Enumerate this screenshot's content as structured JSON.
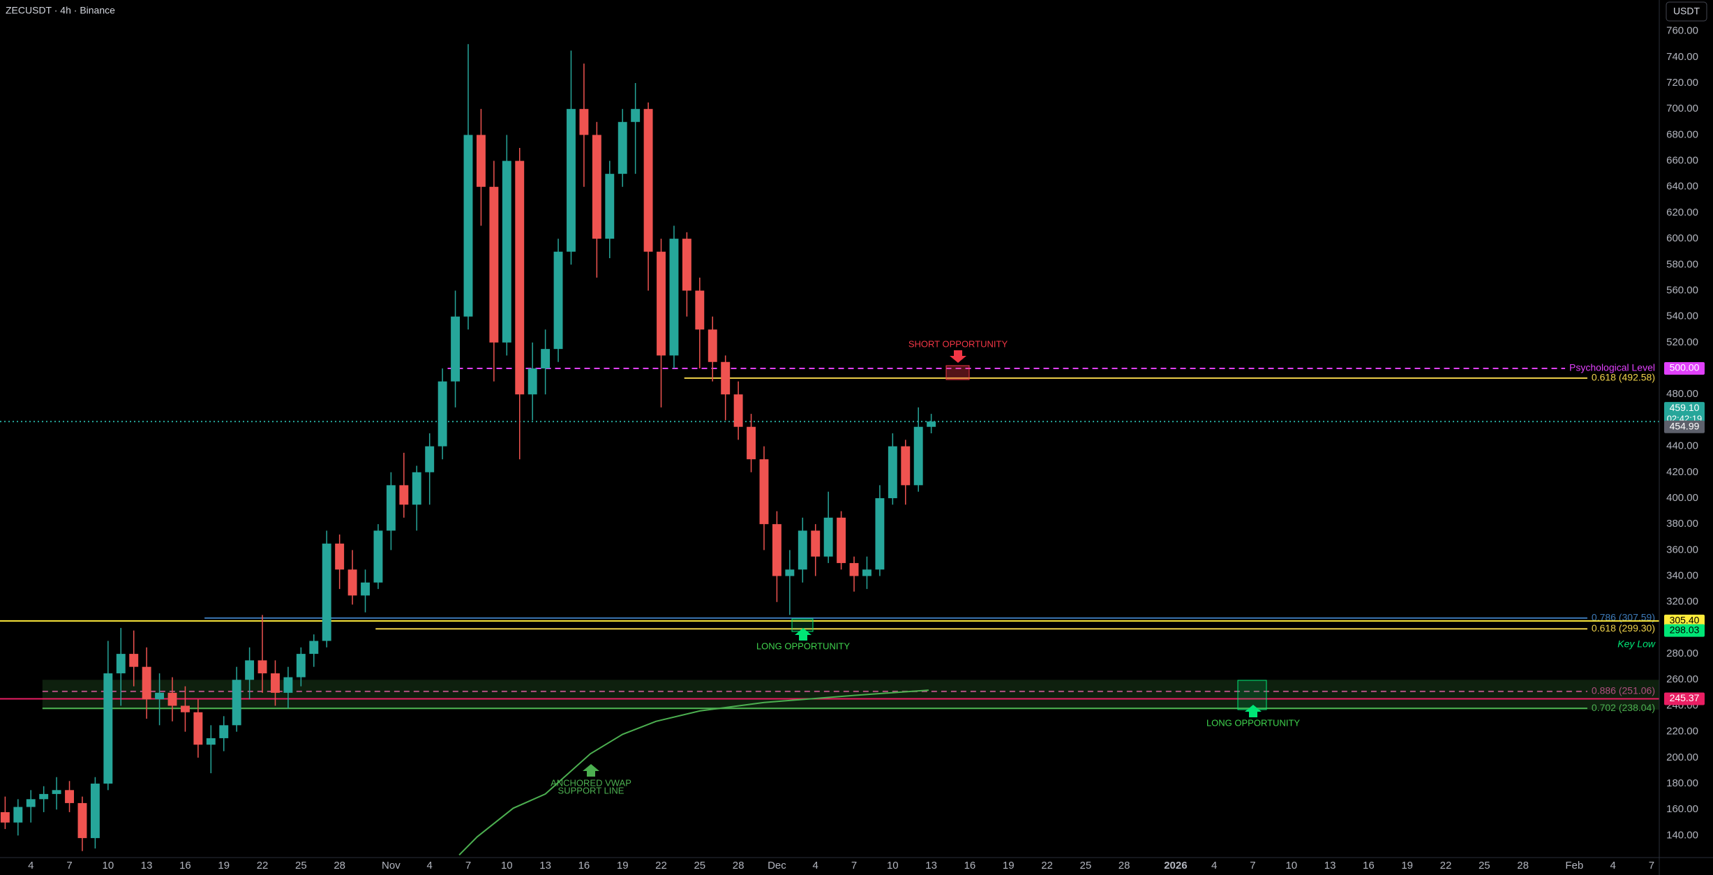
{
  "header": {
    "title": "ZECUSDT · 4h · Binance",
    "currency": "USDT"
  },
  "chart_data": {
    "type": "candlestick",
    "x": [
      1,
      2,
      3,
      4,
      5,
      6,
      7,
      8,
      9,
      10,
      11,
      12,
      13,
      14,
      15,
      16,
      17,
      18,
      19,
      20,
      21,
      22,
      23,
      24,
      25,
      26,
      27,
      28,
      29,
      30,
      31,
      32,
      33,
      34,
      35,
      36,
      37,
      38,
      39,
      40,
      41,
      42,
      43,
      44,
      45,
      46,
      47,
      48,
      49,
      50,
      51,
      52,
      53,
      54,
      55,
      56,
      57,
      58,
      59,
      60,
      61,
      62,
      63,
      64,
      65,
      66,
      67,
      68,
      69,
      70,
      71,
      72,
      73,
      74
    ],
    "open": [
      150,
      158,
      150,
      162,
      168,
      172,
      175,
      165,
      138,
      180,
      265,
      280,
      270,
      245,
      250,
      240,
      235,
      210,
      215,
      225,
      260,
      275,
      265,
      250,
      262,
      280,
      290,
      365,
      345,
      325,
      335,
      375,
      410,
      395,
      420,
      440,
      490,
      540,
      680,
      640,
      520,
      660,
      480,
      500,
      515,
      590,
      700,
      680,
      600,
      650,
      690,
      700,
      590,
      510,
      600,
      560,
      530,
      505,
      480,
      455,
      430,
      380,
      340,
      345,
      375,
      355,
      385,
      350,
      340,
      345,
      400,
      440,
      410,
      455
    ],
    "high": [
      165,
      170,
      168,
      175,
      178,
      185,
      182,
      170,
      185,
      290,
      300,
      298,
      285,
      265,
      262,
      255,
      245,
      225,
      232,
      270,
      285,
      310,
      275,
      270,
      285,
      295,
      375,
      372,
      360,
      345,
      380,
      420,
      435,
      425,
      450,
      500,
      560,
      750,
      700,
      660,
      680,
      670,
      520,
      530,
      600,
      745,
      735,
      690,
      660,
      700,
      720,
      705,
      600,
      610,
      605,
      570,
      540,
      510,
      490,
      465,
      440,
      390,
      360,
      385,
      380,
      405,
      390,
      355,
      355,
      410,
      450,
      445,
      470,
      465
    ],
    "low": [
      128,
      145,
      140,
      150,
      158,
      160,
      158,
      128,
      130,
      175,
      240,
      255,
      230,
      225,
      228,
      220,
      200,
      188,
      205,
      220,
      245,
      250,
      240,
      238,
      255,
      270,
      285,
      330,
      318,
      312,
      330,
      360,
      385,
      375,
      395,
      430,
      470,
      530,
      610,
      490,
      510,
      430,
      460,
      480,
      505,
      580,
      640,
      570,
      585,
      640,
      650,
      560,
      470,
      500,
      540,
      500,
      490,
      460,
      445,
      420,
      360,
      320,
      310,
      335,
      340,
      350,
      345,
      328,
      330,
      340,
      395,
      395,
      405,
      450
    ],
    "close": [
      158,
      150,
      162,
      168,
      172,
      175,
      165,
      138,
      180,
      265,
      280,
      270,
      245,
      250,
      240,
      235,
      210,
      215,
      225,
      260,
      275,
      265,
      250,
      262,
      280,
      290,
      365,
      345,
      325,
      335,
      375,
      410,
      395,
      420,
      440,
      490,
      540,
      680,
      640,
      520,
      660,
      480,
      500,
      515,
      590,
      700,
      680,
      600,
      650,
      690,
      700,
      590,
      510,
      600,
      560,
      530,
      505,
      480,
      455,
      430,
      380,
      340,
      345,
      375,
      355,
      385,
      350,
      340,
      345,
      400,
      440,
      410,
      455,
      459.1
    ],
    "up_color": "#26a69a",
    "down_color": "#ef5350",
    "xlim": [
      1.6,
      130.6
    ],
    "xticks": [
      4,
      7,
      10,
      13,
      16,
      19,
      22,
      25,
      28,
      {
        "value": 32,
        "label": "Nov"
      },
      {
        "value": 35,
        "label": "4"
      },
      {
        "value": 38,
        "label": "7"
      },
      {
        "value": 41,
        "label": "10"
      },
      {
        "value": 44,
        "label": "13"
      },
      {
        "value": 47,
        "label": "16"
      },
      {
        "value": 50,
        "label": "19"
      },
      {
        "value": 53,
        "label": "22"
      },
      {
        "value": 56,
        "label": "25"
      },
      {
        "value": 59,
        "label": "28"
      },
      {
        "value": 62,
        "label": "Dec"
      },
      {
        "value": 65,
        "label": "4"
      },
      {
        "value": 68,
        "label": "7"
      },
      {
        "value": 71,
        "label": "10"
      },
      {
        "value": 74,
        "label": "13"
      },
      {
        "value": 77,
        "label": "16"
      },
      {
        "value": 80,
        "label": "19"
      },
      {
        "value": 83,
        "label": "22"
      },
      {
        "value": 86,
        "label": "25"
      },
      {
        "value": 89,
        "label": "28"
      },
      {
        "value": 93,
        "label": "2026"
      },
      {
        "value": 96,
        "label": "4"
      },
      {
        "value": 99,
        "label": "7"
      },
      {
        "value": 102,
        "label": "10"
      },
      {
        "value": 105,
        "label": "13"
      },
      {
        "value": 108,
        "label": "16"
      },
      {
        "value": 111,
        "label": "19"
      },
      {
        "value": 114,
        "label": "22"
      },
      {
        "value": 117,
        "label": "25"
      },
      {
        "value": 120,
        "label": "28"
      },
      {
        "value": 124,
        "label": "Feb"
      },
      {
        "value": 127,
        "label": "4"
      },
      {
        "value": 130,
        "label": "7"
      }
    ],
    "ylim": [
      123,
      784
    ],
    "yticks": [
      {
        "value": 140,
        "label": "140.00"
      },
      {
        "value": 160,
        "label": "160.00"
      },
      {
        "value": 180,
        "label": "180.00"
      },
      {
        "value": 200,
        "label": "200.00"
      },
      {
        "value": 220,
        "label": "220.00"
      },
      {
        "value": 240,
        "label": "240.00"
      },
      {
        "value": 260,
        "label": "260.00"
      },
      {
        "value": 280,
        "label": "280.00"
      },
      {
        "value": 300,
        "label": "300.00"
      },
      {
        "value": 320,
        "label": "320.00"
      },
      {
        "value": 340,
        "label": "340.00"
      },
      {
        "value": 360,
        "label": "360.00"
      },
      {
        "value": 380,
        "label": "380.00"
      },
      {
        "value": 400,
        "label": "400.00"
      },
      {
        "value": 420,
        "label": "420.00"
      },
      {
        "value": 440,
        "label": "440.00"
      },
      {
        "value": 460,
        "label": "460.00"
      },
      {
        "value": 480,
        "label": "480.00"
      },
      {
        "value": 500,
        "label": "500.00"
      },
      {
        "value": 520,
        "label": "520.00"
      },
      {
        "value": 540,
        "label": "540.00"
      },
      {
        "value": 560,
        "label": "560.00"
      },
      {
        "value": 580,
        "label": "580.00"
      },
      {
        "value": 600,
        "label": "600.00"
      },
      {
        "value": 620,
        "label": "620.00"
      },
      {
        "value": 640,
        "label": "640.00"
      },
      {
        "value": 660,
        "label": "660.00"
      },
      {
        "value": 680,
        "label": "680.00"
      },
      {
        "value": 700,
        "label": "700.00"
      },
      {
        "value": 720,
        "label": "720.00"
      },
      {
        "value": 740,
        "label": "740.00"
      },
      {
        "value": 760,
        "label": "760.00"
      }
    ],
    "vwap": {
      "x": [
        37.3,
        38.7,
        41.5,
        44,
        47.5,
        50,
        52.6,
        56,
        61,
        68,
        73.8
      ],
      "values": [
        125,
        139,
        161,
        172,
        203,
        218,
        228,
        236,
        242.5,
        248,
        252
      ],
      "color": "#4caf50"
    },
    "zone": {
      "range": [
        237,
        260
      ],
      "from": 4.9,
      "color": "#4caf50"
    },
    "levels": [
      {
        "value": 500,
        "text": "Psychological Level",
        "tag": "500.00",
        "color": "#e040fb",
        "style": "dashed",
        "from": 36.4,
        "tag_text": "#ffffff"
      },
      {
        "value": 492.58,
        "text": "0.618 (492.58)",
        "color": "#f0d34a",
        "style": "solid",
        "from": 54.8
      },
      {
        "value": 459.1,
        "tag": "459.10",
        "note": "02:42:19",
        "color": "#26a69a",
        "style": "dotted",
        "tag_text": "#ffffff"
      },
      {
        "value": 454.99,
        "tag": "454.99",
        "color": "#5d606b",
        "style": "none",
        "tag_text": "#ffffff"
      },
      {
        "value": 307.59,
        "text": "0.786 (307.59)",
        "color": "#3d7ab8",
        "style": "solid",
        "from": 17.5
      },
      {
        "value": 305.4,
        "tag": "305.40",
        "color": "#ffeb3b",
        "style": "solid",
        "tag_text": "#000000"
      },
      {
        "value": 299.3,
        "text": "0.618 (299.30)",
        "color": "#f0d34a",
        "style": "solid",
        "from": 30.8
      },
      {
        "value": 298.03,
        "tag": "298.03",
        "note": "Key Low",
        "color": "#00e676",
        "style": "none",
        "tag_text": "#000000"
      },
      {
        "value": 251.06,
        "text": "0.886 (251.06)",
        "color": "#b05080",
        "style": "dashed",
        "from": 4.9
      },
      {
        "value": 245.37,
        "tag": "245.37",
        "color": "#e91e63",
        "style": "solid",
        "tag_text": "#ffffff"
      },
      {
        "value": 238.04,
        "text": "0.702 (238.04)",
        "color": "#4caf50",
        "style": "solid",
        "from": 4.9
      }
    ],
    "annotations": [
      "SHORT OPPORTUNITY",
      "LONG OPPORTUNITY",
      "LONG OPPORTUNITY",
      "ANCHORED VWAP",
      "SUPPORT LINE"
    ]
  }
}
